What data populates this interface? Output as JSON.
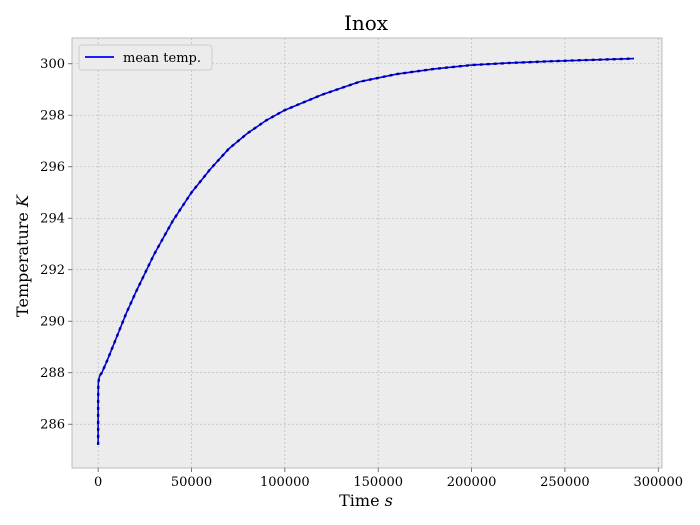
{
  "chart_data": {
    "type": "line",
    "title": "Inox",
    "xlabel": "Time",
    "xlabel_unit": "s",
    "ylabel": "Temperature",
    "ylabel_unit": "K",
    "xlim": [
      -14000,
      302000
    ],
    "ylim": [
      284.3,
      301.0
    ],
    "xticks": [
      0,
      50000,
      100000,
      150000,
      200000,
      250000,
      300000
    ],
    "yticks": [
      286,
      288,
      290,
      292,
      294,
      296,
      298,
      300
    ],
    "grid": true,
    "legend_position": "upper-left",
    "series": [
      {
        "name": "mean temp.",
        "color": "#0000ff",
        "x": [
          0,
          0,
          100,
          500,
          1000,
          2000,
          5000,
          10000,
          15000,
          20000,
          30000,
          40000,
          50000,
          60000,
          70000,
          80000,
          90000,
          100000,
          120000,
          140000,
          160000,
          180000,
          200000,
          220000,
          240000,
          260000,
          287000
        ],
        "y": [
          285.2,
          286.8,
          287.6,
          287.8,
          287.9,
          288.0,
          288.5,
          289.4,
          290.3,
          291.1,
          292.6,
          293.9,
          295.0,
          295.9,
          296.7,
          297.3,
          297.8,
          298.2,
          298.8,
          299.3,
          299.6,
          299.8,
          299.95,
          300.03,
          300.09,
          300.14,
          300.2
        ]
      }
    ]
  }
}
